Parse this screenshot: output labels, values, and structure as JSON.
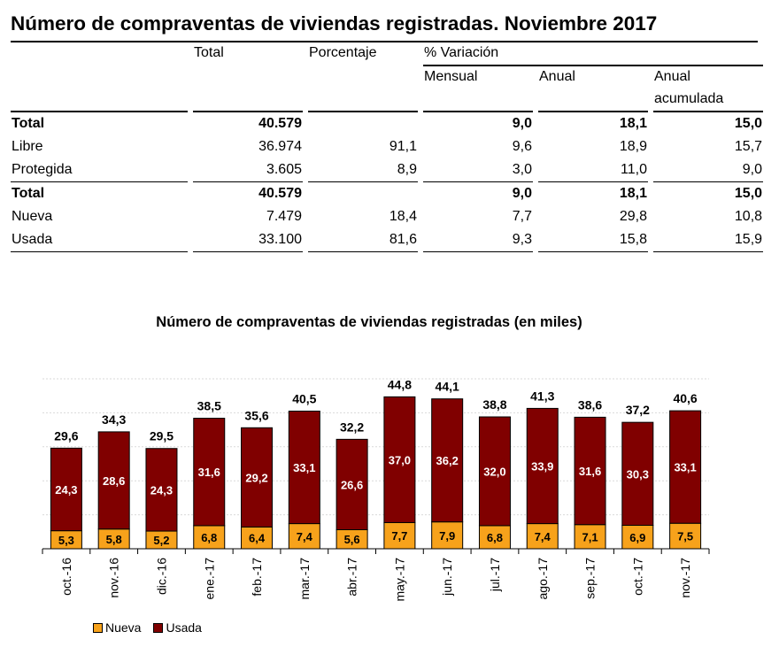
{
  "table": {
    "title": "Número de compraventas de viviendas registradas. Noviembre 2017",
    "headers": {
      "total": "Total",
      "porcentaje": "Porcentaje",
      "variacion": "% Variación",
      "mensual": "Mensual",
      "anual": "Anual",
      "anual_acumulada_1": "Anual",
      "anual_acumulada_2": "acumulada"
    },
    "rows": [
      {
        "label": "Total",
        "total": "40.579",
        "porcentaje": "",
        "mensual": "9,0",
        "anual": "18,1",
        "acumulada": "15,0"
      },
      {
        "label": "Libre",
        "total": "36.974",
        "porcentaje": "91,1",
        "mensual": "9,6",
        "anual": "18,9",
        "acumulada": "15,7"
      },
      {
        "label": "Protegida",
        "total": "3.605",
        "porcentaje": "8,9",
        "mensual": "3,0",
        "anual": "11,0",
        "acumulada": "9,0"
      },
      {
        "label": "Total",
        "total": "40.579",
        "porcentaje": "",
        "mensual": "9,0",
        "anual": "18,1",
        "acumulada": "15,0"
      },
      {
        "label": "Nueva",
        "total": "7.479",
        "porcentaje": "18,4",
        "mensual": "7,7",
        "anual": "29,8",
        "acumulada": "10,8"
      },
      {
        "label": "Usada",
        "total": "33.100",
        "porcentaje": "81,6",
        "mensual": "9,3",
        "anual": "15,8",
        "acumulada": "15,9"
      }
    ]
  },
  "chart_data": {
    "type": "bar",
    "stacked": true,
    "title": "Número de compraventas de viviendas registradas (en miles)",
    "categories": [
      "oct.-16",
      "nov.-16",
      "dic.-16",
      "ene.-17",
      "feb.-17",
      "mar.-17",
      "abr.-17",
      "may.-17",
      "jun.-17",
      "jul.-17",
      "ago.-17",
      "sep.-17",
      "oct.-17",
      "nov.-17"
    ],
    "series": [
      {
        "name": "Nueva",
        "color": "#F7A21B",
        "values": [
          5.3,
          5.8,
          5.2,
          6.8,
          6.4,
          7.4,
          5.6,
          7.7,
          7.9,
          6.8,
          7.4,
          7.1,
          6.9,
          7.5
        ]
      },
      {
        "name": "Usada",
        "color": "#800000",
        "values": [
          24.3,
          28.6,
          24.3,
          31.6,
          29.2,
          33.1,
          26.6,
          37.0,
          36.2,
          32.0,
          33.9,
          31.6,
          30.3,
          33.1
        ]
      }
    ],
    "totals": [
      29.6,
      34.3,
      29.5,
      38.5,
      35.6,
      40.5,
      32.2,
      44.8,
      44.1,
      38.8,
      41.3,
      38.6,
      37.2,
      40.6
    ],
    "ylim": [
      0,
      50
    ],
    "grid": true,
    "legend_position": "bottom-left"
  }
}
